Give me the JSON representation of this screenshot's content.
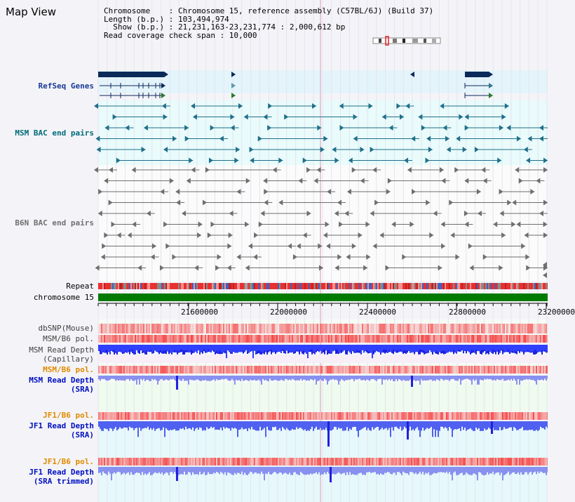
{
  "title": "Map View",
  "info": {
    "line1": "Chromosome    : Chromosome 15, reference assembly (C57BL/6J) (Build 37)",
    "line2": "Length (b.p.) : 103,494,974",
    "line3": "  Show (b.p.) : 21,231,163-23,231,774 : 2,000,612 bp",
    "line4": "Read coverage check span : 10,000"
  },
  "labels": {
    "refseq": "RefSeq Genes",
    "msm_bac": "MSM BAC end pairs",
    "b6n_bac": "B6N BAC end pairs",
    "repeat": "Repeat",
    "chromosome": "chromosome 15",
    "dbsnp": "dbSNP(Mouse)",
    "msm_b6_pol": "MSM/B6 pol.",
    "msm_depth_cap_1": "MSM Read Depth",
    "msm_depth_cap_2": "(Capillary)",
    "msm_b6_pol_2": "MSM/B6 pol.",
    "msm_depth_sra_1": "MSM Read Depth",
    "msm_depth_sra_2": "(SRA)",
    "jf1_b6_pol": "JF1/B6 pol.",
    "jf1_depth_sra_1": "JF1 Read Depth",
    "jf1_depth_sra_2": "(SRA)",
    "jf1_b6_pol_2": "JF1/B6 pol.",
    "jf1_depth_trim_1": "JF1 Read Depth",
    "jf1_depth_trim_2": "(SRA trimmed)"
  },
  "axis": {
    "ticks": [
      "21600000",
      "22000000",
      "22400000",
      "22800000",
      "23200000"
    ]
  },
  "colors": {
    "refseq_bg": "#e4f4fb",
    "bac_bg": "#e9fbfb",
    "gene": "#0b2a5a",
    "msm_bac": "#1f6f8a",
    "b6n_bac": "#6e6e6e",
    "chromosome": "#007a00",
    "depth_dark": "#2020e0",
    "depth_light": "#8890f0",
    "pol_red": "#f03030"
  }
}
